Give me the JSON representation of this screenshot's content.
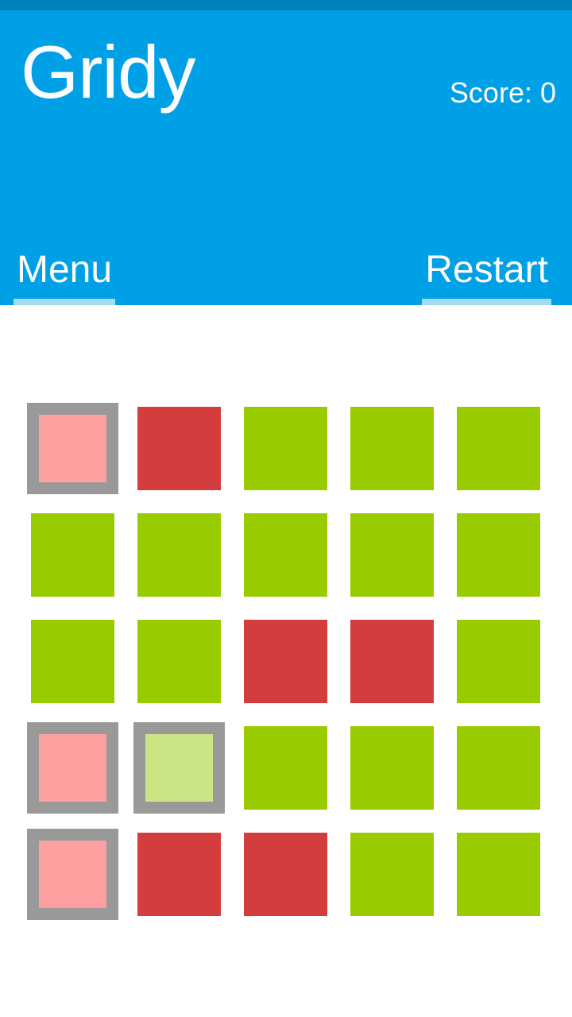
{
  "app": {
    "title": "Gridy",
    "score_text": "Score: 0"
  },
  "actions": {
    "menu_label": "Menu",
    "restart_label": "Restart"
  },
  "colors": {
    "status_bar": "#0080b8",
    "header": "#00a0e6",
    "header_text": "#fcfcfc",
    "action_underline": "#a3dcf2",
    "tile_green": "#99cc00",
    "tile_red": "#d43d3d",
    "tile_red_selected_fill": "#fda0a0",
    "tile_green_selected_fill": "#cbe585",
    "tile_selected_border": "#999999",
    "page_background": "#ffffff"
  },
  "grid": {
    "rows": 5,
    "cols": 5,
    "cell_states": [
      [
        "red-selected",
        "red",
        "green",
        "green",
        "green"
      ],
      [
        "green",
        "green",
        "green",
        "green",
        "green"
      ],
      [
        "green",
        "green",
        "red",
        "red",
        "green"
      ],
      [
        "red-selected",
        "green-selected",
        "green",
        "green",
        "green"
      ],
      [
        "red-selected",
        "red",
        "red",
        "green",
        "green"
      ]
    ],
    "state_styles": {
      "green": {
        "fill": "#99cc00"
      },
      "red": {
        "fill": "#d43d3d"
      },
      "red-selected": {
        "fill": "#fda0a0",
        "border": "#999999"
      },
      "green-selected": {
        "fill": "#cbe585",
        "border": "#999999"
      }
    }
  }
}
